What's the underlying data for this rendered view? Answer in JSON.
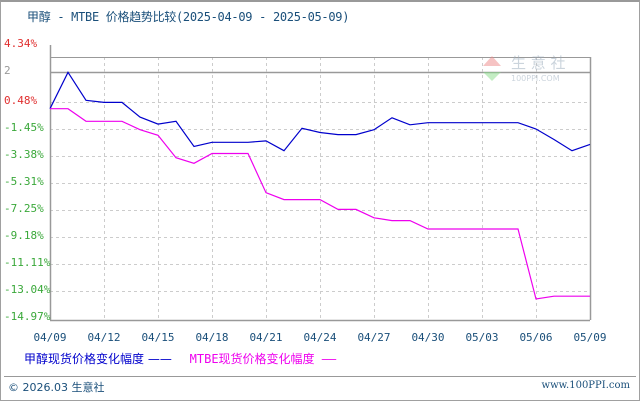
{
  "title": "甲醇 - MTBE 价格趋势比较(2025-04-09 - 2025-05-09)",
  "chart_data": {
    "type": "line",
    "title": "甲醇 - MTBE 价格趋势比较(2025-04-09 - 2025-05-09)",
    "xlabel": "",
    "ylabel": "",
    "ylim": [
      -14.97,
      4.34
    ],
    "y_ticks": [
      "4.34%",
      "2",
      "0.48%",
      "-1.45%",
      "-3.38%",
      "-5.31%",
      "-7.25%",
      "-9.18%",
      "-11.11%",
      "-13.04%",
      "-14.97%"
    ],
    "x_ticks": [
      "04/09",
      "04/12",
      "04/15",
      "04/18",
      "04/21",
      "04/24",
      "04/27",
      "04/30",
      "05/03",
      "05/06",
      "05/09"
    ],
    "grid": true,
    "legend_position": "bottom-left",
    "x": [
      "04/09",
      "04/10",
      "04/11",
      "04/12",
      "04/13",
      "04/14",
      "04/15",
      "04/16",
      "04/17",
      "04/18",
      "04/19",
      "04/20",
      "04/21",
      "04/22",
      "04/23",
      "04/24",
      "04/25",
      "04/26",
      "04/27",
      "04/28",
      "04/29",
      "04/30",
      "05/01",
      "05/02",
      "05/03",
      "05/04",
      "05/05",
      "05/06",
      "05/07",
      "05/08",
      "05/09"
    ],
    "series": [
      {
        "name": "甲醇现货价格变化幅度",
        "color": "#0000cc",
        "values": [
          0.0,
          2.6,
          0.6,
          0.45,
          0.45,
          -0.6,
          -1.1,
          -0.9,
          -2.7,
          -2.4,
          -2.4,
          -2.4,
          -2.3,
          -3.0,
          -1.4,
          -1.7,
          -1.85,
          -1.85,
          -1.5,
          -0.65,
          -1.15,
          -1.0,
          -1.0,
          -1.0,
          -1.0,
          -1.0,
          -1.0,
          -1.45,
          -2.2,
          -3.0,
          -2.55
        ]
      },
      {
        "name": "MTBE现货价格变化幅度",
        "color": "#ee00ee",
        "values": [
          0.0,
          0.0,
          -0.9,
          -0.9,
          -0.9,
          -1.5,
          -1.9,
          -3.5,
          -3.9,
          -3.2,
          -3.2,
          -3.2,
          -6.0,
          -6.5,
          -6.5,
          -6.5,
          -7.2,
          -7.2,
          -7.8,
          -8.0,
          -8.0,
          -8.6,
          -8.6,
          -8.6,
          -8.6,
          -8.6,
          -8.6,
          -13.6,
          -13.4,
          -13.4,
          -13.4
        ]
      }
    ]
  },
  "legend": {
    "series1": "甲醇现货价格变化幅度 ——",
    "series2": "MTBE现货价格变化幅度 ——"
  },
  "watermark": {
    "name": "生 意 社",
    "url": "100PPI.COM"
  },
  "footer": {
    "copyright": "© 2026.03 生意社",
    "site": "www.100PPI.com"
  }
}
